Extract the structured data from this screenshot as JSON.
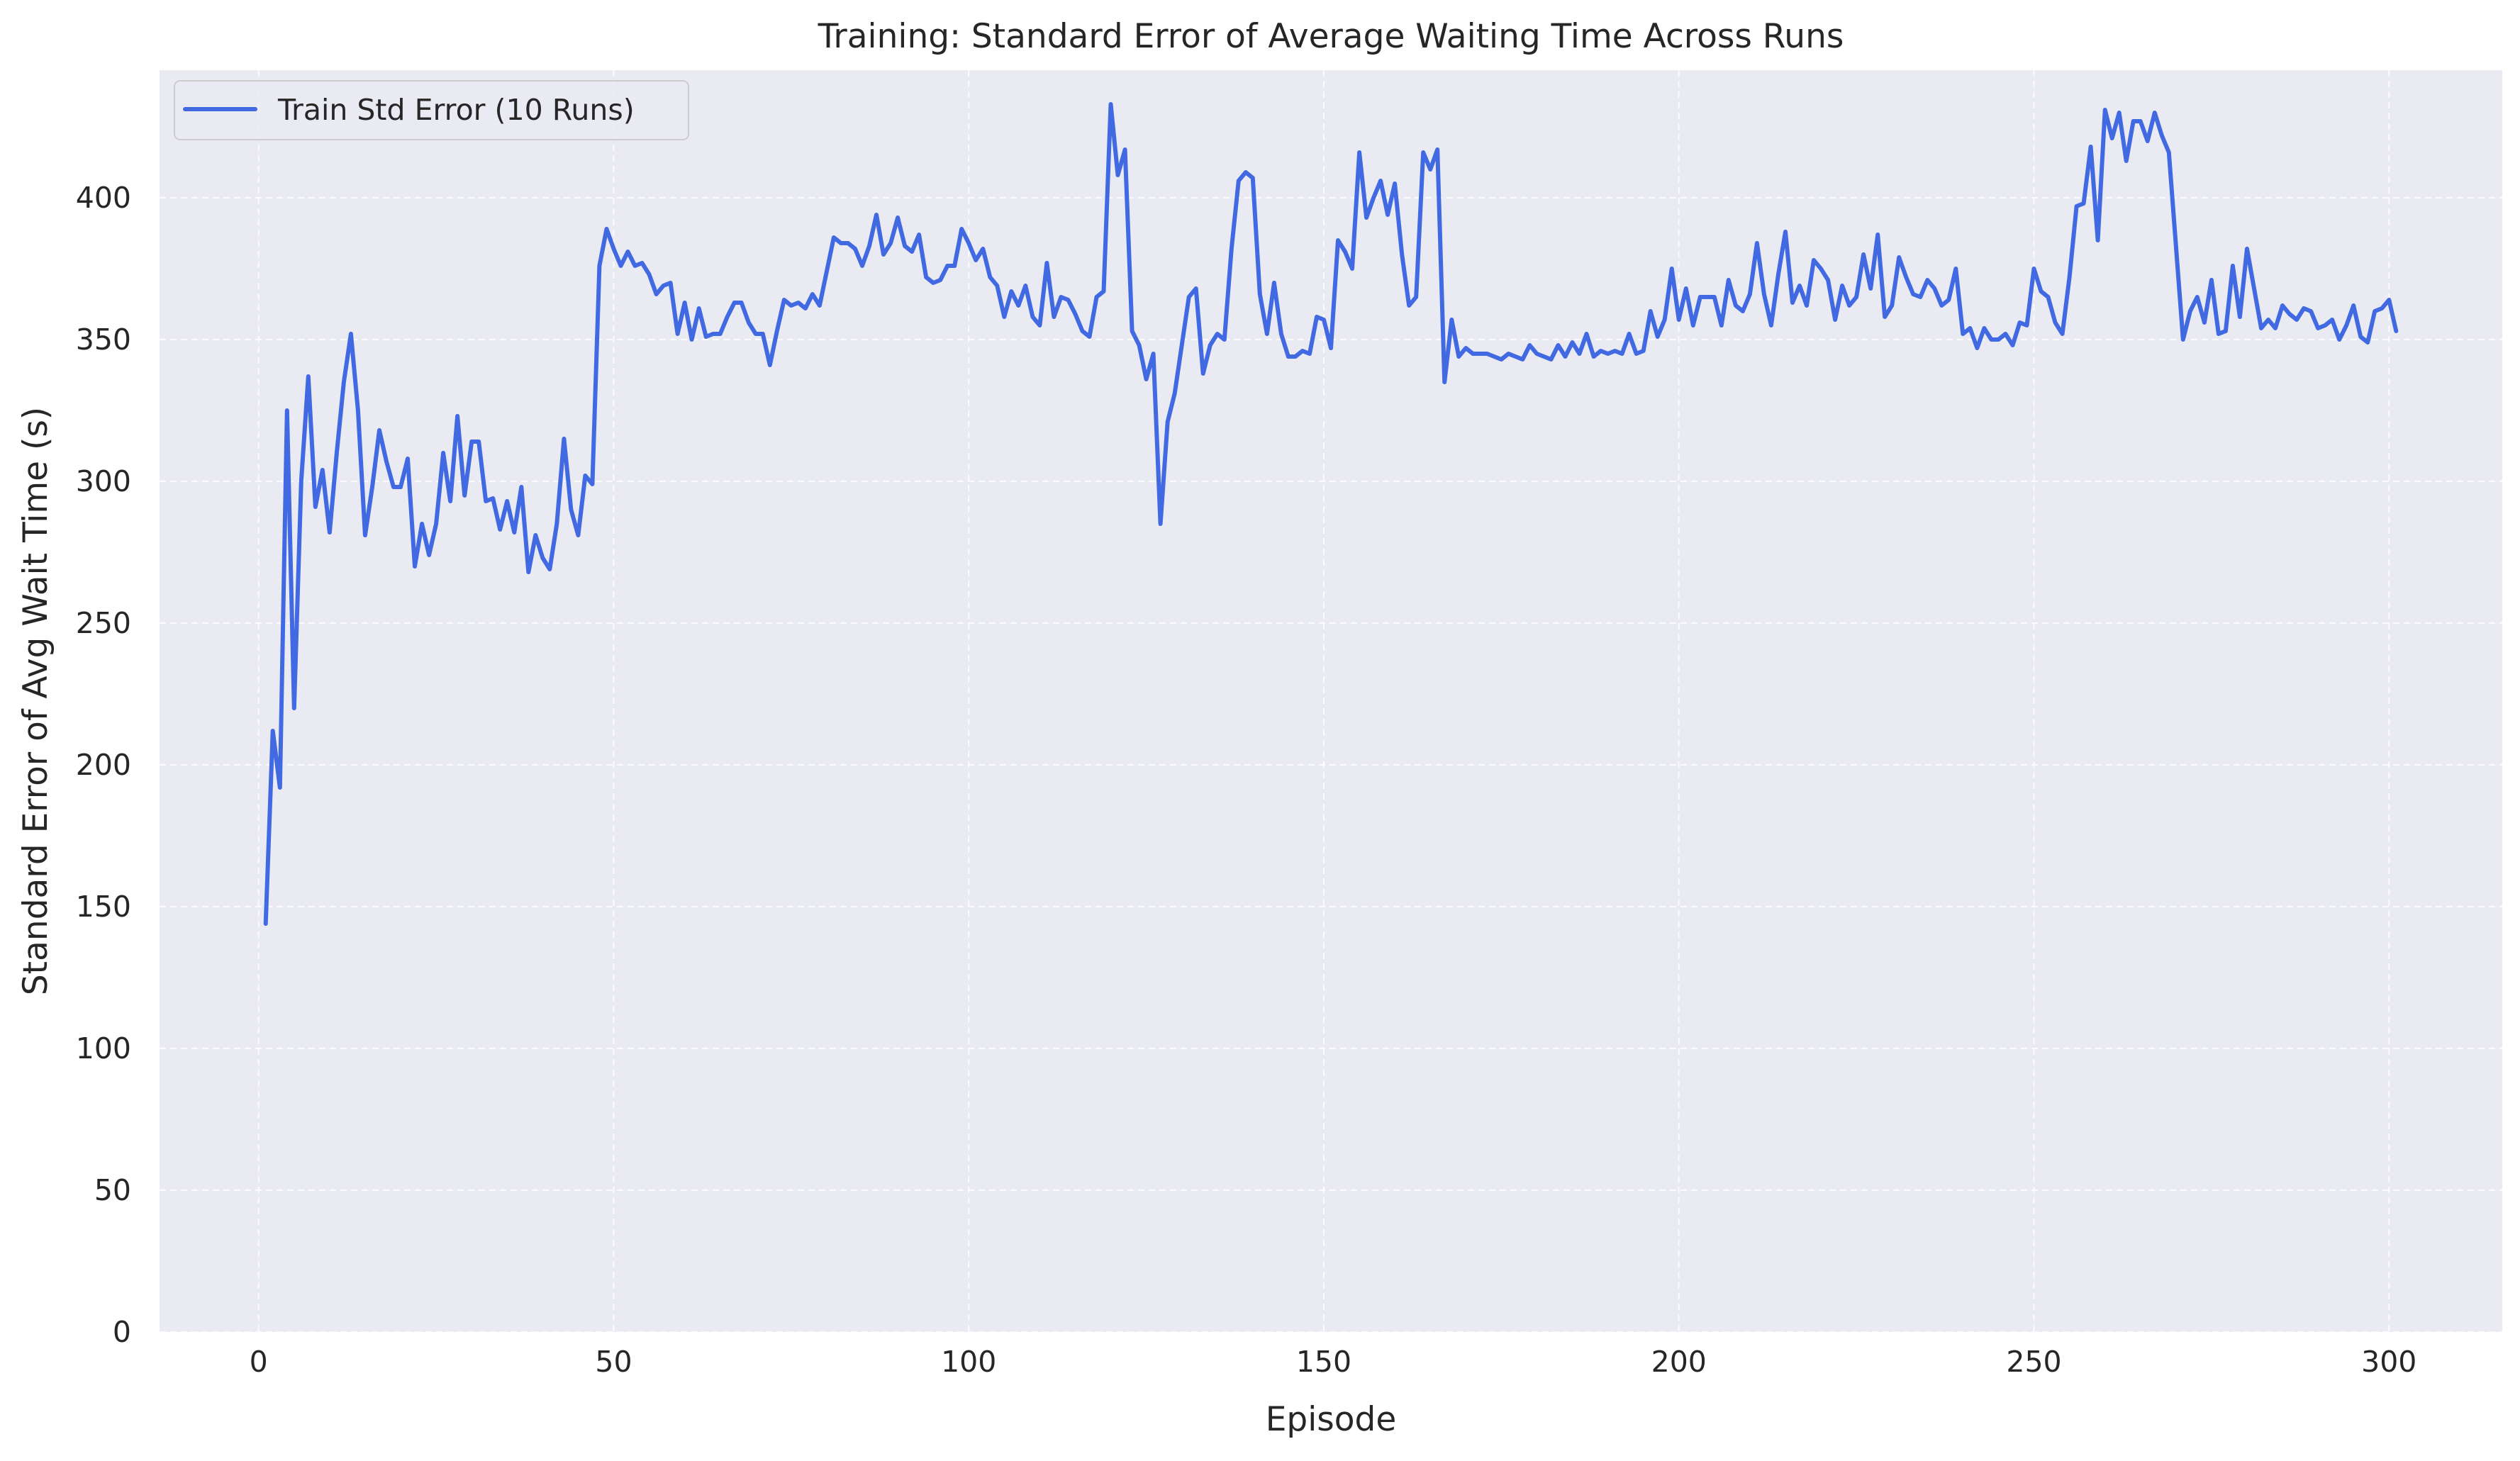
{
  "chart_data": {
    "type": "line",
    "title": "Training: Standard Error of Average Waiting Time Across Runs",
    "xlabel": "Episode",
    "ylabel": "Standard Error of Avg Wait Time (s)",
    "xlim": [
      -13.95,
      315.95
    ],
    "ylim": [
      0,
      445
    ],
    "xticks": [
      0,
      50,
      100,
      150,
      200,
      250,
      300
    ],
    "yticks": [
      0,
      50,
      100,
      150,
      200,
      250,
      300,
      350,
      400
    ],
    "grid": true,
    "legend_position": "top-left",
    "background_color": "#eaeaf2",
    "series": [
      {
        "name": "Train Std Error (10 Runs)",
        "color": "#4169e1",
        "x_start": 1,
        "x_step": 1,
        "values": [
          144,
          212,
          192,
          325,
          220,
          300,
          337,
          291,
          304,
          282,
          310,
          335,
          352,
          325,
          281,
          298,
          318,
          307,
          298,
          298,
          308,
          270,
          285,
          274,
          285,
          310,
          293,
          323,
          295,
          314,
          314,
          293,
          294,
          283,
          293,
          282,
          298,
          268,
          281,
          273,
          269,
          285,
          315,
          290,
          281,
          302,
          299,
          376,
          389,
          382,
          376,
          381,
          376,
          377,
          373,
          366,
          369,
          370,
          352,
          363,
          350,
          361,
          351,
          352,
          352,
          358,
          363,
          363,
          356,
          352,
          352,
          341,
          353,
          364,
          362,
          363,
          361,
          366,
          362,
          374,
          386,
          384,
          384,
          382,
          376,
          383,
          394,
          380,
          384,
          393,
          383,
          381,
          387,
          372,
          370,
          371,
          376,
          376,
          389,
          384,
          378,
          382,
          372,
          369,
          358,
          367,
          362,
          369,
          358,
          355,
          377,
          358,
          365,
          364,
          359,
          353,
          351,
          365,
          367,
          433,
          408,
          417,
          353,
          348,
          336,
          345,
          285,
          321,
          331,
          348,
          365,
          368,
          338,
          348,
          352,
          350,
          382,
          406,
          409,
          407,
          366,
          352,
          370,
          352,
          344,
          344,
          346,
          345,
          358,
          357,
          347,
          385,
          381,
          375,
          416,
          393,
          400,
          406,
          394,
          405,
          380,
          362,
          365,
          416,
          410,
          417,
          335,
          357,
          344,
          347,
          345,
          345,
          345,
          344,
          343,
          345,
          344,
          343,
          348,
          345,
          344,
          343,
          348,
          344,
          349,
          345,
          352,
          344,
          346,
          345,
          346,
          345,
          352,
          345,
          346,
          360,
          351,
          357,
          375,
          357,
          368,
          355,
          365,
          365,
          365,
          355,
          371,
          362,
          360,
          366,
          384,
          366,
          355,
          373,
          388,
          363,
          369,
          362,
          378,
          375,
          371,
          357,
          369,
          362,
          365,
          380,
          368,
          387,
          358,
          362,
          379,
          372,
          366,
          365,
          371,
          368,
          362,
          364,
          375,
          352,
          354,
          347,
          354,
          350,
          350,
          352,
          348,
          356,
          355,
          375,
          367,
          365,
          356,
          352,
          372,
          397,
          398,
          418,
          385,
          431,
          421,
          430,
          413,
          427,
          427,
          420,
          430,
          422,
          416,
          383,
          350,
          360,
          365,
          356,
          371,
          352,
          353,
          376,
          358,
          382,
          368,
          354,
          357,
          354,
          362,
          359,
          357,
          361,
          360,
          354,
          355,
          357,
          350,
          355,
          362,
          351,
          349,
          360,
          361,
          364,
          353
        ]
      }
    ]
  }
}
